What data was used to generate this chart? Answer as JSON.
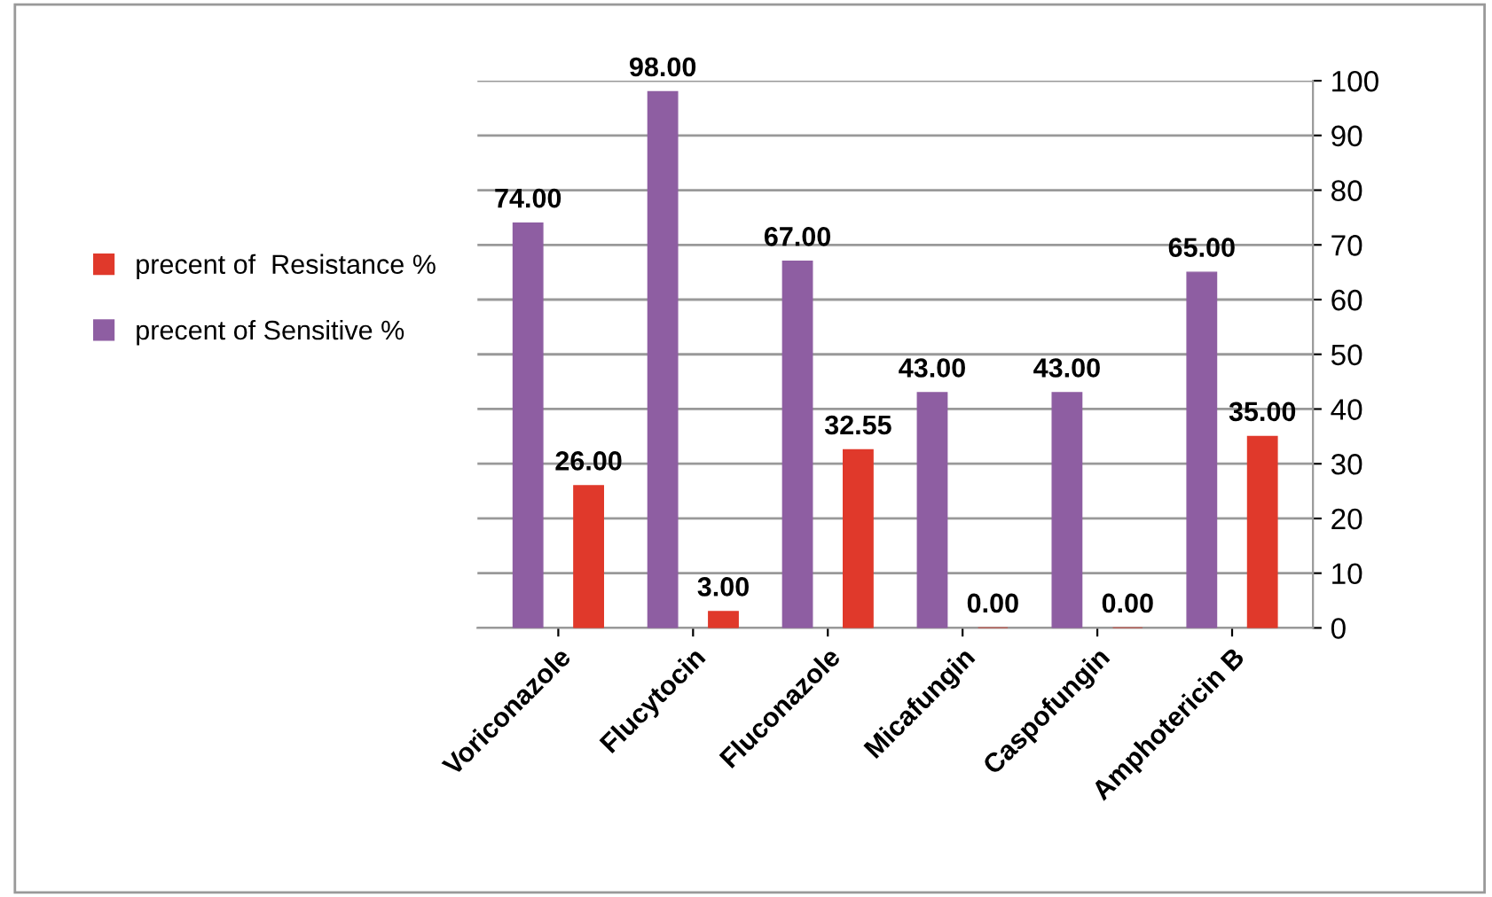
{
  "chart_data": {
    "type": "bar",
    "categories": [
      "Voriconazole",
      "Flucytocin",
      "Fluconazole",
      "Micafungin",
      "Caspofungin",
      "Amphotericin B"
    ],
    "series": [
      {
        "name": "precent of Sensitive %",
        "color": "#8e5ea2",
        "values": [
          74,
          98,
          67,
          43,
          43,
          65
        ],
        "value_labels": [
          "74.00",
          "98.00",
          "67.00",
          "43.00",
          "43.00",
          "65.00"
        ]
      },
      {
        "name": "precent of  Resistance %",
        "color": "#e0392b",
        "values": [
          26,
          3,
          32.55,
          0,
          0,
          35
        ],
        "value_labels": [
          "26.00",
          "3.00",
          "32.55",
          "0.00",
          "0.00",
          "35.00"
        ]
      }
    ],
    "ylim": [
      0,
      100
    ],
    "yticks": [
      0,
      10,
      20,
      30,
      40,
      50,
      60,
      70,
      80,
      90,
      100
    ],
    "grid": "y",
    "legend": "left"
  }
}
